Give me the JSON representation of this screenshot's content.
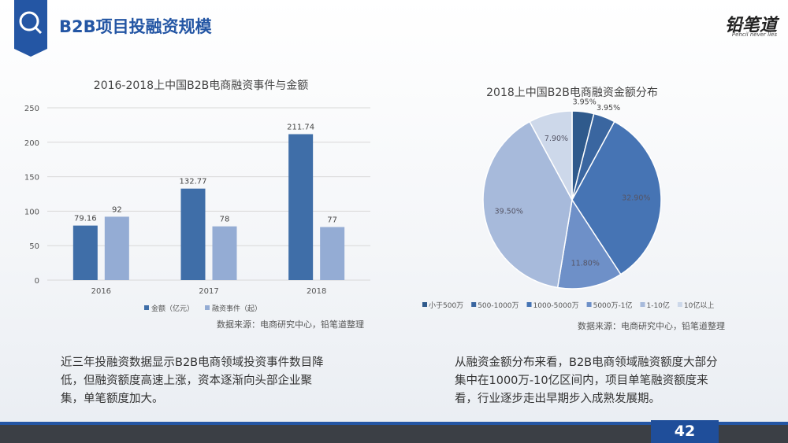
{
  "header": {
    "title": "B2B项目投融资规模",
    "logo": "铅笔道",
    "logo_sub": "Pencil never lies"
  },
  "chart_data": [
    {
      "type": "bar",
      "title": "2016-2018上中国B2B电商融资事件与金额",
      "categories": [
        "2016",
        "2017",
        "2018"
      ],
      "series": [
        {
          "name": "金额（亿元）",
          "color": "#3f6ea8",
          "values": [
            79.16,
            132.77,
            211.74
          ]
        },
        {
          "name": "融资事件（起）",
          "color": "#94acd4",
          "values": [
            92,
            78,
            77
          ]
        }
      ],
      "ylim": [
        0,
        250
      ],
      "yticks": [
        0,
        50,
        100,
        150,
        200,
        250
      ],
      "grid": true,
      "source": "数据来源：电商研究中心，铅笔道整理"
    },
    {
      "type": "pie",
      "title": "2018上中国B2B电商融资金额分布",
      "categories": [
        "小于500万",
        "500-1000万",
        "1000-5000万",
        "5000万-1亿",
        "1-10亿",
        "10亿以上"
      ],
      "values": [
        3.95,
        3.95,
        32.9,
        11.8,
        39.5,
        7.9
      ],
      "value_labels": [
        "3.95%",
        "3.95%",
        "32.90%",
        "11.80%",
        "39.50%",
        "7.90%"
      ],
      "colors": [
        "#2f5a8c",
        "#3a66a0",
        "#4674b4",
        "#6e90c8",
        "#a7badb",
        "#cdd8ea"
      ],
      "source": "数据来源：电商研究中心，铅笔道整理"
    }
  ],
  "text": {
    "left": "近三年投融资数据显示B2B电商领域投资事件数目降低，但融资额度高速上涨，资本逐渐向头部企业聚集，单笔额度加大。",
    "right": "从融资金额分布来看，B2B电商领域融资额度大部分集中在1000万-10亿区间内，项目单笔融资额度来看，行业逐步走出早期步入成熟发展期。"
  },
  "page_number": "42"
}
